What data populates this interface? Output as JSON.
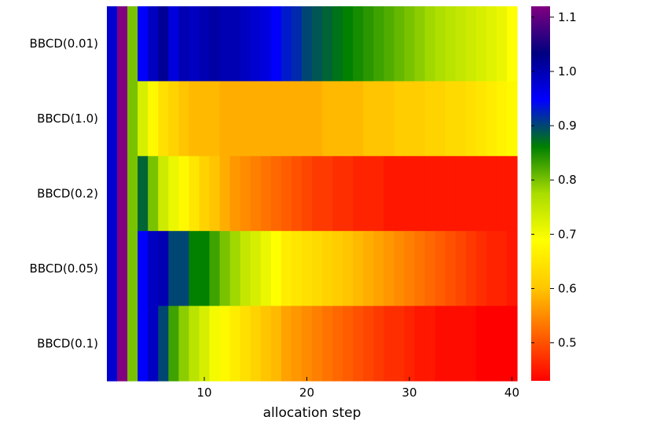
{
  "chart_data": {
    "type": "heatmap",
    "title": "",
    "xlabel": "allocation step",
    "ylabel": "",
    "x": [
      1,
      2,
      3,
      4,
      5,
      6,
      7,
      8,
      9,
      10,
      11,
      12,
      13,
      14,
      15,
      16,
      17,
      18,
      19,
      20,
      21,
      22,
      23,
      24,
      25,
      26,
      27,
      28,
      29,
      30,
      31,
      32,
      33,
      34,
      35,
      36,
      37,
      38,
      39,
      40
    ],
    "xlim": [
      0.5,
      40.5
    ],
    "xticks": [
      10,
      20,
      30,
      40
    ],
    "xtick_labels": [
      "10",
      "20",
      "30",
      "40"
    ],
    "rows": [
      "BBCD(0.01)",
      "BBCD(1.0)",
      "BBCD(0.2)",
      "BBCD(0.05)",
      "BBCD(0.1)"
    ],
    "values": [
      [
        0.98,
        1.12,
        0.8,
        0.95,
        0.99,
        1.02,
        0.97,
        1.0,
        0.99,
        1.0,
        1.01,
        1.0,
        1.0,
        0.99,
        0.98,
        0.97,
        0.95,
        0.93,
        0.92,
        0.9,
        0.89,
        0.88,
        0.87,
        0.86,
        0.85,
        0.84,
        0.83,
        0.82,
        0.81,
        0.8,
        0.79,
        0.78,
        0.77,
        0.76,
        0.75,
        0.74,
        0.73,
        0.72,
        0.71,
        0.69
      ],
      [
        0.98,
        1.12,
        0.8,
        0.73,
        0.68,
        0.64,
        0.62,
        0.6,
        0.59,
        0.59,
        0.59,
        0.58,
        0.58,
        0.58,
        0.58,
        0.58,
        0.58,
        0.58,
        0.58,
        0.58,
        0.58,
        0.59,
        0.59,
        0.59,
        0.59,
        0.6,
        0.6,
        0.6,
        0.61,
        0.61,
        0.61,
        0.62,
        0.62,
        0.63,
        0.63,
        0.64,
        0.65,
        0.66,
        0.67,
        0.68
      ],
      [
        0.98,
        1.12,
        0.8,
        0.88,
        0.8,
        0.74,
        0.71,
        0.68,
        0.65,
        0.62,
        0.6,
        0.58,
        0.56,
        0.55,
        0.54,
        0.53,
        0.52,
        0.51,
        0.5,
        0.49,
        0.48,
        0.48,
        0.47,
        0.47,
        0.46,
        0.46,
        0.46,
        0.45,
        0.45,
        0.45,
        0.45,
        0.45,
        0.45,
        0.45,
        0.45,
        0.45,
        0.45,
        0.45,
        0.45,
        0.45
      ],
      [
        0.98,
        1.12,
        0.8,
        0.95,
        0.99,
        1.0,
        0.9,
        0.9,
        0.86,
        0.86,
        0.83,
        0.8,
        0.78,
        0.75,
        0.73,
        0.71,
        0.69,
        0.66,
        0.65,
        0.64,
        0.63,
        0.62,
        0.61,
        0.6,
        0.59,
        0.58,
        0.57,
        0.56,
        0.55,
        0.54,
        0.53,
        0.52,
        0.51,
        0.5,
        0.49,
        0.48,
        0.47,
        0.46,
        0.46,
        0.45
      ],
      [
        0.98,
        1.12,
        0.8,
        0.95,
        0.99,
        0.9,
        0.83,
        0.79,
        0.76,
        0.73,
        0.7,
        0.68,
        0.66,
        0.64,
        0.62,
        0.6,
        0.59,
        0.57,
        0.56,
        0.55,
        0.54,
        0.53,
        0.52,
        0.51,
        0.5,
        0.49,
        0.48,
        0.47,
        0.47,
        0.46,
        0.45,
        0.45,
        0.44,
        0.44,
        0.44,
        0.44,
        0.43,
        0.43,
        0.43,
        0.43
      ]
    ],
    "colorbar": {
      "range": [
        0.43,
        1.12
      ],
      "ticks": [
        0.5,
        0.6,
        0.7,
        0.8,
        0.9,
        1.0,
        1.1
      ],
      "tick_labels": [
        "0.5",
        "0.6",
        "0.7",
        "0.8",
        "0.9",
        "1.0",
        "1.1"
      ],
      "colors": [
        "#ff0000",
        "#ff6400",
        "#ffc800",
        "#ffff00",
        "#aadd00",
        "#008000",
        "#0000ff",
        "#000080",
        "#800080"
      ]
    },
    "grid": false,
    "legend": "colorbar-right"
  }
}
